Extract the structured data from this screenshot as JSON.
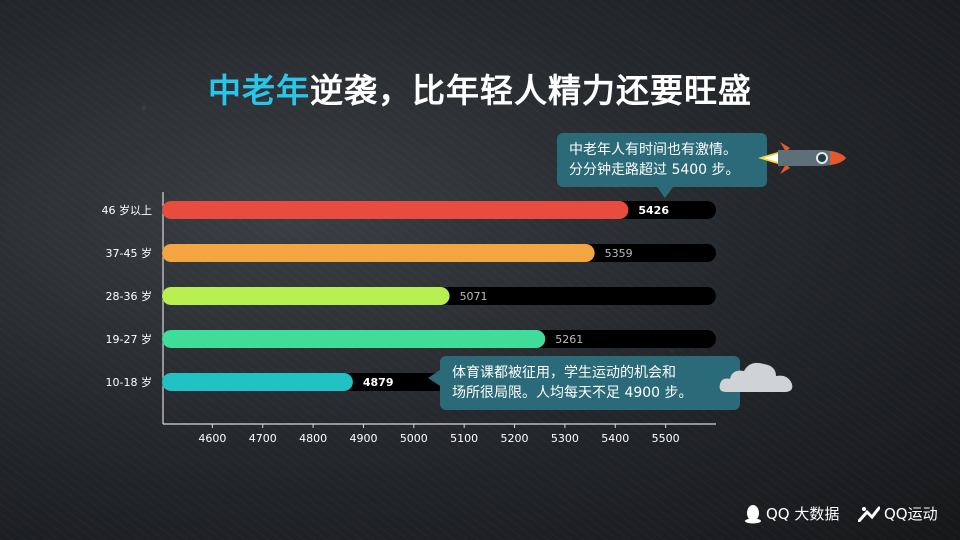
{
  "title": {
    "highlight": "中老年",
    "rest": "逆袭，比年轻人精力还要旺盛"
  },
  "callouts": {
    "top": [
      "中老年人有时间也有激情。",
      "分分钟走路超过 5400 步。"
    ],
    "bottom": [
      "体育课都被征用，学生运动的机会和",
      "场所很局限。人均每天不足 4900 步。"
    ]
  },
  "branding": {
    "qq_bigdata": "QQ 大数据",
    "qq_sport": "QQ运动"
  },
  "icons": {
    "rocket": "rocket-icon",
    "cloud": "cloud-icon",
    "qq": "qq-penguin-icon",
    "sport": "qq-sport-icon"
  },
  "colors": {
    "title_highlight": "#28c6e8",
    "callout_bg": "#2b6a79",
    "track": "#000000"
  },
  "chart_data": {
    "type": "bar",
    "orientation": "horizontal",
    "categories": [
      "46 岁以上",
      "37-45 岁",
      "28-36 岁",
      "19-27 岁",
      "10-18 岁"
    ],
    "values": [
      5426,
      5359,
      5071,
      5261,
      4879
    ],
    "value_labels": [
      "5426",
      "5359",
      "5071",
      "5261",
      "4879"
    ],
    "bar_colors": [
      "#e84c3d",
      "#f2a541",
      "#b6ef4f",
      "#3fdc9a",
      "#22c1c3"
    ],
    "xlim": [
      4500,
      5600
    ],
    "xticks": [
      4600,
      4700,
      4800,
      4900,
      5000,
      5100,
      5200,
      5300,
      5400,
      5500
    ],
    "xtick_labels": [
      "4600",
      "4700",
      "4800",
      "4900",
      "5000",
      "5100",
      "5200",
      "5300",
      "5400",
      "5500"
    ],
    "title": "",
    "xlabel": "",
    "ylabel": "",
    "grid": false
  }
}
